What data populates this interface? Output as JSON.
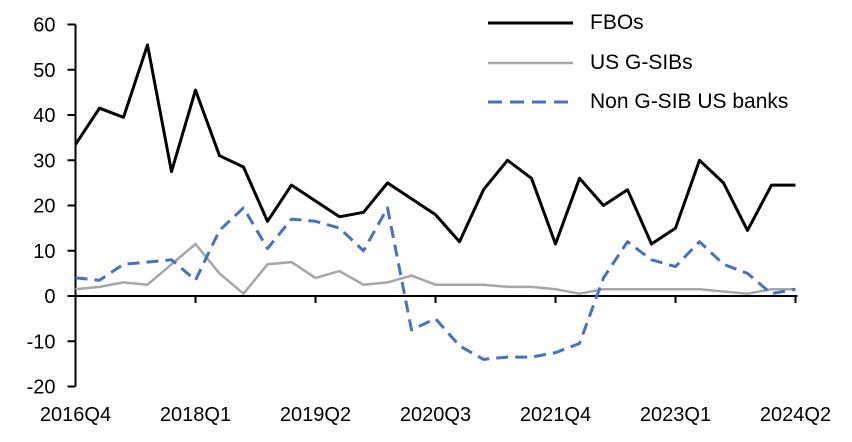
{
  "chart_data": {
    "type": "line",
    "title": "",
    "xlabel": "",
    "ylabel": "",
    "ylim": [
      -20,
      60
    ],
    "y_ticks": [
      60,
      50,
      40,
      30,
      20,
      10,
      0,
      -10,
      -20
    ],
    "grid": false,
    "legend_position": "top-right",
    "categories": [
      "2016Q4",
      "2017Q1",
      "2017Q2",
      "2017Q3",
      "2017Q4",
      "2018Q1",
      "2018Q2",
      "2018Q3",
      "2018Q4",
      "2019Q1",
      "2019Q2",
      "2019Q3",
      "2019Q4",
      "2020Q1",
      "2020Q2",
      "2020Q3",
      "2020Q4",
      "2021Q1",
      "2021Q2",
      "2021Q3",
      "2021Q4",
      "2022Q1",
      "2022Q2",
      "2022Q3",
      "2022Q4",
      "2023Q1",
      "2023Q2",
      "2023Q3",
      "2023Q4",
      "2024Q1",
      "2024Q2"
    ],
    "x_tick_indices": [
      0,
      5,
      10,
      15,
      20,
      25,
      30
    ],
    "x_tick_labels": [
      "2016Q4",
      "2018Q1",
      "2019Q2",
      "2020Q3",
      "2021Q4",
      "2023Q1",
      "2024Q2"
    ],
    "series": [
      {
        "name": "FBOs",
        "color": "#000000",
        "style": "solid",
        "values": [
          33.5,
          41.5,
          39.5,
          55.5,
          27.5,
          45.5,
          31,
          28.5,
          16.5,
          24.5,
          21,
          17.5,
          18.5,
          25,
          21.5,
          18,
          12,
          23.5,
          30,
          26,
          11.5,
          26,
          20,
          23.5,
          11.5,
          15,
          30,
          25,
          14.5,
          24.5,
          24.5
        ]
      },
      {
        "name": "US G-SIBs",
        "color": "#a6a6a6",
        "style": "solid",
        "values": [
          1.5,
          2,
          3,
          2.5,
          7,
          11.5,
          5,
          0.5,
          7,
          7.5,
          4,
          5.5,
          2.5,
          3,
          4.5,
          2.5,
          2.5,
          2.5,
          2,
          2,
          1.5,
          0.5,
          1.5,
          1.5,
          1.5,
          1.5,
          1.5,
          1,
          0.5,
          1.5,
          1.5
        ]
      },
      {
        "name": "Non G-SIB US banks",
        "color": "#4472c4",
        "style": "dashed",
        "values": [
          4,
          3.5,
          7,
          7.5,
          8,
          3.5,
          14.5,
          19.5,
          10.5,
          17,
          16.5,
          15,
          10,
          19.5,
          -7.5,
          -5,
          -11,
          -14,
          -13.5,
          -13.5,
          -12.5,
          -10.5,
          4,
          12,
          8,
          6.5,
          12,
          7,
          5,
          0.5,
          1.5
        ]
      }
    ]
  }
}
